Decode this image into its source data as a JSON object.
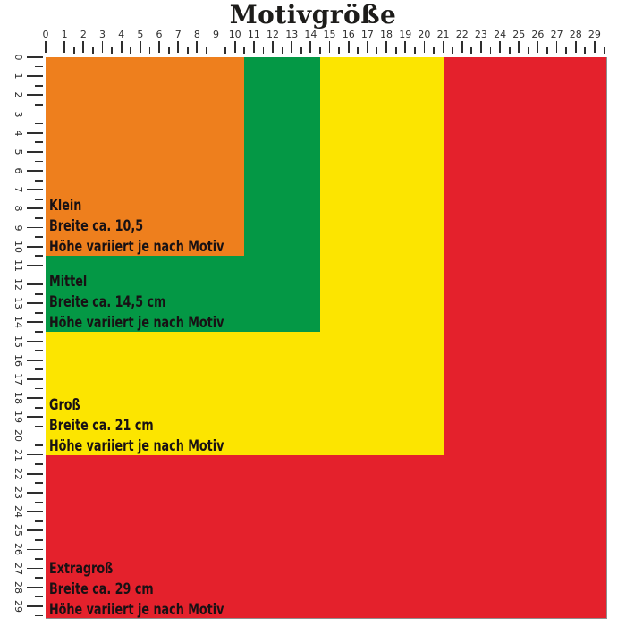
{
  "title": "Motivgröße",
  "ruler": {
    "numbers": [
      0,
      1,
      2,
      3,
      4,
      5,
      6,
      7,
      8,
      9,
      10,
      11,
      12,
      13,
      14,
      15,
      16,
      17,
      18,
      19,
      20,
      21,
      22,
      23,
      24,
      25,
      26,
      27,
      28,
      29
    ]
  },
  "sizes": [
    {
      "id": "klein",
      "name": "Klein",
      "width_cm": 10.5,
      "width_label": "Breite ca. 10,5",
      "height_label": "Höhe variiert je nach Motiv",
      "color": "#EE7F1D"
    },
    {
      "id": "mittel",
      "name": "Mittel",
      "width_cm": 14.5,
      "width_label": "Breite ca. 14,5 cm",
      "height_label": "Höhe variiert je nach Motiv",
      "color": "#049845"
    },
    {
      "id": "gross",
      "name": "Groß",
      "width_cm": 21,
      "width_label": "Breite ca. 21 cm",
      "height_label": "Höhe variiert je nach Motiv",
      "color": "#FCE500"
    },
    {
      "id": "extragross",
      "name": "Extragroß",
      "width_cm": 29,
      "width_label": "Breite ca. 29 cm",
      "height_label": "Höhe variiert je nach Motiv",
      "color": "#E4212C"
    }
  ],
  "colors": {
    "tick": "#2E2E2E",
    "number": "#2E2E2E",
    "label_text": "#181114",
    "background": "#FFFFFF"
  }
}
